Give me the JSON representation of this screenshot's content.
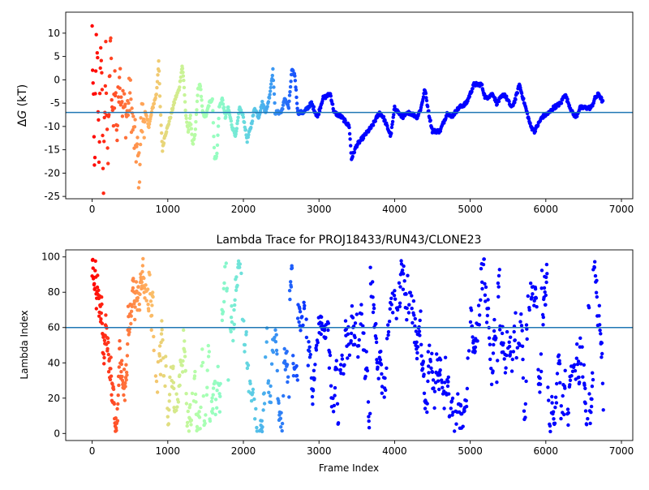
{
  "chart_data": [
    {
      "type": "scatter",
      "title": "",
      "xlabel": "",
      "ylabel": "ΔG (kT)",
      "ylabel_prefix": "Δ",
      "ylabel_italic": "G",
      "ylabel_suffix": " (kT)",
      "xlim": [
        -350,
        7150
      ],
      "ylim": [
        -25.5,
        14.5
      ],
      "xticks": [
        0,
        1000,
        2000,
        3000,
        4000,
        5000,
        6000,
        7000
      ],
      "yticks": [
        -25,
        -20,
        -15,
        -10,
        -5,
        0,
        5,
        10
      ],
      "hline": {
        "y": -7.0,
        "color": "#1f77b4"
      },
      "colormap": "rainbow (early frames red, late frames violet)",
      "marker_color_encodes": "frame index",
      "series_trend_points": [
        [
          0,
          10
        ],
        [
          30,
          -20
        ],
        [
          60,
          13
        ],
        [
          90,
          -15
        ],
        [
          120,
          8
        ],
        [
          150,
          -23
        ],
        [
          180,
          5
        ],
        [
          210,
          -18
        ],
        [
          240,
          9
        ],
        [
          270,
          -10
        ],
        [
          300,
          0
        ],
        [
          330,
          -12
        ],
        [
          360,
          3
        ],
        [
          400,
          -5
        ],
        [
          450,
          -8
        ],
        [
          500,
          -3
        ],
        [
          550,
          -12
        ],
        [
          600,
          -16
        ],
        [
          620,
          -20
        ],
        [
          650,
          -9
        ],
        [
          700,
          -7
        ],
        [
          750,
          -10
        ],
        [
          800,
          -6
        ],
        [
          850,
          -3
        ],
        [
          880,
          4
        ],
        [
          900,
          -6
        ],
        [
          930,
          -15
        ],
        [
          960,
          -12
        ],
        [
          1000,
          -10
        ],
        [
          1050,
          -7
        ],
        [
          1100,
          -4
        ],
        [
          1150,
          -2
        ],
        [
          1190,
          3
        ],
        [
          1210,
          0
        ],
        [
          1240,
          -8
        ],
        [
          1270,
          -11
        ],
        [
          1300,
          -8
        ],
        [
          1330,
          -14
        ],
        [
          1360,
          -12
        ],
        [
          1400,
          -2
        ],
        [
          1430,
          -1
        ],
        [
          1460,
          -7
        ],
        [
          1500,
          -8
        ],
        [
          1550,
          -5
        ],
        [
          1590,
          -4
        ],
        [
          1620,
          -17
        ],
        [
          1650,
          -16
        ],
        [
          1680,
          -6
        ],
        [
          1720,
          -4
        ],
        [
          1760,
          -8
        ],
        [
          1800,
          -6
        ],
        [
          1850,
          -10
        ],
        [
          1900,
          -12
        ],
        [
          1950,
          -6
        ],
        [
          2000,
          -8
        ],
        [
          2050,
          -13
        ],
        [
          2100,
          -10
        ],
        [
          2150,
          -6
        ],
        [
          2200,
          -8
        ],
        [
          2250,
          -5
        ],
        [
          2300,
          -7
        ],
        [
          2350,
          -3
        ],
        [
          2390,
          2
        ],
        [
          2420,
          -7
        ],
        [
          2500,
          -7
        ],
        [
          2550,
          -4
        ],
        [
          2600,
          -6
        ],
        [
          2640,
          2
        ],
        [
          2680,
          1
        ],
        [
          2720,
          -7
        ],
        [
          2800,
          -7
        ],
        [
          2900,
          -5
        ],
        [
          2980,
          -8
        ],
        [
          3050,
          -4
        ],
        [
          3150,
          -3
        ],
        [
          3200,
          -7
        ],
        [
          3300,
          -8
        ],
        [
          3400,
          -10
        ],
        [
          3430,
          -17
        ],
        [
          3450,
          -16
        ],
        [
          3500,
          -14
        ],
        [
          3600,
          -12
        ],
        [
          3700,
          -10
        ],
        [
          3800,
          -7
        ],
        [
          3850,
          -8
        ],
        [
          3950,
          -12
        ],
        [
          4000,
          -6
        ],
        [
          4100,
          -8
        ],
        [
          4200,
          -7
        ],
        [
          4300,
          -8
        ],
        [
          4350,
          -6
        ],
        [
          4400,
          -2
        ],
        [
          4450,
          -7
        ],
        [
          4500,
          -11
        ],
        [
          4600,
          -11
        ],
        [
          4700,
          -7
        ],
        [
          4750,
          -8
        ],
        [
          4850,
          -6
        ],
        [
          4950,
          -5
        ],
        [
          5050,
          -1
        ],
        [
          5150,
          -1
        ],
        [
          5200,
          -4
        ],
        [
          5300,
          -3
        ],
        [
          5350,
          -5
        ],
        [
          5450,
          -3
        ],
        [
          5550,
          -6
        ],
        [
          5600,
          -4
        ],
        [
          5650,
          -1
        ],
        [
          5700,
          -4
        ],
        [
          5750,
          -7
        ],
        [
          5800,
          -10
        ],
        [
          5850,
          -11
        ],
        [
          5950,
          -8
        ],
        [
          6050,
          -7
        ],
        [
          6100,
          -6
        ],
        [
          6200,
          -5
        ],
        [
          6250,
          -3
        ],
        [
          6300,
          -5
        ],
        [
          6350,
          -7
        ],
        [
          6400,
          -8
        ],
        [
          6450,
          -6
        ],
        [
          6550,
          -6
        ],
        [
          6600,
          -6
        ],
        [
          6650,
          -4
        ],
        [
          6700,
          -3
        ],
        [
          6760,
          -5
        ]
      ]
    },
    {
      "type": "scatter",
      "title": "Lambda Trace for PROJ18433/RUN43/CLONE23",
      "xlabel": "Frame Index",
      "ylabel": "Lambda Index",
      "xlim": [
        -350,
        7150
      ],
      "ylim": [
        -4,
        104
      ],
      "xticks": [
        0,
        1000,
        2000,
        3000,
        4000,
        5000,
        6000,
        7000
      ],
      "yticks": [
        0,
        20,
        40,
        60,
        80,
        100
      ],
      "hline": {
        "y": 60,
        "color": "#1f77b4"
      },
      "colormap": "rainbow (early frames red, late frames violet)",
      "marker_color_encodes": "frame index",
      "value_range": [
        0,
        99
      ],
      "frame_range": [
        0,
        6760
      ]
    }
  ]
}
